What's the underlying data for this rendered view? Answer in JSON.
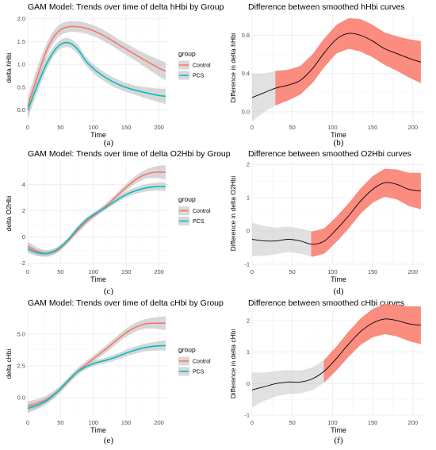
{
  "chart_data": [
    {
      "panel": "a",
      "type": "line",
      "title": "GAM Model: Trends over time of delta hHbi by Group",
      "xlabel": "Time",
      "ylabel": "delta hHbi",
      "xlim": [
        0,
        215
      ],
      "ylim": [
        -0.25,
        2.1
      ],
      "xticks": [
        0,
        50,
        100,
        150,
        200
      ],
      "yticks": [
        0.0,
        0.5,
        1.0,
        1.5,
        2.0
      ],
      "ytick_labels": [
        "0.0",
        "0.5",
        "1.0",
        "1.5",
        "2.0"
      ],
      "grid": true,
      "legend": {
        "title": "group",
        "placement": "right"
      },
      "series": [
        {
          "name": "Control",
          "color": "#F8766D",
          "x": [
            0,
            15,
            30,
            45,
            60,
            80,
            100,
            120,
            140,
            160,
            180,
            200,
            210
          ],
          "y": [
            0.08,
            0.75,
            1.35,
            1.7,
            1.82,
            1.82,
            1.74,
            1.6,
            1.42,
            1.25,
            1.08,
            0.92,
            0.85
          ],
          "band": [
            0.2,
            0.2,
            0.15,
            0.13,
            0.12,
            0.12,
            0.12,
            0.12,
            0.12,
            0.13,
            0.15,
            0.18,
            0.2
          ]
        },
        {
          "name": "PCS",
          "color": "#00BFC4",
          "x": [
            0,
            15,
            30,
            45,
            60,
            75,
            90,
            105,
            120,
            140,
            160,
            180,
            200,
            210
          ],
          "y": [
            0.0,
            0.55,
            1.05,
            1.38,
            1.48,
            1.35,
            1.05,
            0.85,
            0.7,
            0.55,
            0.45,
            0.38,
            0.32,
            0.3
          ],
          "band": [
            0.2,
            0.15,
            0.12,
            0.1,
            0.1,
            0.1,
            0.1,
            0.1,
            0.1,
            0.1,
            0.1,
            0.12,
            0.15,
            0.17
          ]
        }
      ]
    },
    {
      "panel": "b",
      "type": "line",
      "title": "Difference between smoothed hHbi curves",
      "xlabel": "Time",
      "ylabel": "Difference in delta hHbi",
      "xlim": [
        0,
        215
      ],
      "ylim": [
        -0.1,
        1.02
      ],
      "xticks": [
        0,
        50,
        100,
        150,
        200
      ],
      "yticks": [
        0.0,
        0.4,
        0.8
      ],
      "ytick_labels": [
        "0.0",
        "0.4",
        "0.8"
      ],
      "grid": true,
      "significant_from": 30,
      "significant_color": "#FA8072",
      "line_color": "#000000",
      "x": [
        0,
        15,
        30,
        45,
        60,
        75,
        90,
        105,
        120,
        135,
        150,
        165,
        180,
        195,
        210
      ],
      "y": [
        0.15,
        0.2,
        0.25,
        0.28,
        0.33,
        0.45,
        0.62,
        0.76,
        0.82,
        0.8,
        0.74,
        0.66,
        0.61,
        0.56,
        0.52
      ],
      "band": [
        0.25,
        0.2,
        0.18,
        0.16,
        0.15,
        0.15,
        0.15,
        0.15,
        0.16,
        0.17,
        0.17,
        0.17,
        0.18,
        0.2,
        0.22
      ]
    },
    {
      "panel": "c",
      "type": "line",
      "title": "GAM Model: Trends over time of delta O2Hbi by Group",
      "xlabel": "Time",
      "ylabel": "delta O2Hbi",
      "xlim": [
        0,
        215
      ],
      "ylim": [
        -2.2,
        5.8
      ],
      "xticks": [
        0,
        50,
        100,
        150,
        200
      ],
      "yticks": [
        -2,
        0,
        2,
        4
      ],
      "ytick_labels": [
        "-2",
        "0",
        "2",
        "4"
      ],
      "grid": true,
      "legend": {
        "title": "group",
        "placement": "right"
      },
      "series": [
        {
          "name": "Control",
          "color": "#F8766D",
          "x": [
            0,
            15,
            30,
            45,
            60,
            75,
            90,
            105,
            120,
            135,
            150,
            165,
            180,
            195,
            210
          ],
          "y": [
            -0.7,
            -1.1,
            -1.25,
            -1.0,
            -0.35,
            0.45,
            1.2,
            1.8,
            2.4,
            3.1,
            3.8,
            4.4,
            4.8,
            4.95,
            4.95
          ],
          "band": [
            0.35,
            0.3,
            0.25,
            0.22,
            0.2,
            0.2,
            0.2,
            0.2,
            0.2,
            0.22,
            0.25,
            0.3,
            0.35,
            0.45,
            0.55
          ]
        },
        {
          "name": "PCS",
          "color": "#00BFC4",
          "x": [
            0,
            15,
            30,
            45,
            60,
            75,
            90,
            105,
            120,
            135,
            150,
            165,
            180,
            195,
            210
          ],
          "y": [
            -0.9,
            -1.2,
            -1.25,
            -0.95,
            -0.3,
            0.6,
            1.35,
            1.85,
            2.3,
            2.8,
            3.25,
            3.55,
            3.75,
            3.85,
            3.85
          ],
          "band": [
            0.3,
            0.25,
            0.2,
            0.2,
            0.18,
            0.18,
            0.18,
            0.18,
            0.18,
            0.2,
            0.22,
            0.25,
            0.28,
            0.3,
            0.32
          ]
        }
      ]
    },
    {
      "panel": "d",
      "type": "line",
      "title": "Difference between smoothed O2Hbi curves",
      "xlabel": "Time",
      "ylabel": "Difference in delta O2Hbi",
      "xlim": [
        0,
        215
      ],
      "ylim": [
        -1.05,
        2.1
      ],
      "xticks": [
        0,
        50,
        100,
        150,
        200
      ],
      "yticks": [
        -1,
        0,
        1,
        2
      ],
      "ytick_labels": [
        "-1",
        "0",
        "1",
        "2"
      ],
      "grid": true,
      "significant_from": 75,
      "significant_color": "#FA8072",
      "line_color": "#000000",
      "x": [
        0,
        15,
        30,
        45,
        60,
        75,
        90,
        105,
        120,
        135,
        150,
        165,
        180,
        195,
        210
      ],
      "y": [
        -0.25,
        -0.3,
        -0.3,
        -0.25,
        -0.3,
        -0.4,
        -0.3,
        0.05,
        0.45,
        0.9,
        1.25,
        1.45,
        1.4,
        1.25,
        1.2
      ],
      "band": [
        0.5,
        0.45,
        0.4,
        0.38,
        0.38,
        0.38,
        0.38,
        0.38,
        0.38,
        0.38,
        0.4,
        0.42,
        0.45,
        0.5,
        0.55
      ]
    },
    {
      "panel": "e",
      "type": "line",
      "title": "GAM Model: Trends over time of delta cHbi by Group",
      "xlabel": "Time",
      "ylabel": "delta cHbi",
      "xlim": [
        0,
        215
      ],
      "ylim": [
        -1.5,
        6.8
      ],
      "xticks": [
        0,
        50,
        100,
        150,
        200
      ],
      "yticks": [
        0.0,
        2.5,
        5.0
      ],
      "ytick_labels": [
        "0.0",
        "2.5",
        "5.0"
      ],
      "grid": true,
      "legend": {
        "title": "group",
        "placement": "right"
      },
      "series": [
        {
          "name": "Control",
          "color": "#F8766D",
          "x": [
            0,
            15,
            30,
            45,
            60,
            75,
            90,
            105,
            120,
            135,
            150,
            165,
            180,
            195,
            210
          ],
          "y": [
            -0.7,
            -0.45,
            -0.1,
            0.45,
            1.2,
            2.0,
            2.65,
            3.25,
            3.85,
            4.5,
            5.1,
            5.55,
            5.8,
            5.85,
            5.85
          ],
          "band": [
            0.4,
            0.35,
            0.3,
            0.28,
            0.26,
            0.26,
            0.26,
            0.26,
            0.28,
            0.3,
            0.32,
            0.35,
            0.38,
            0.45,
            0.55
          ]
        },
        {
          "name": "PCS",
          "color": "#00BFC4",
          "x": [
            0,
            15,
            30,
            45,
            60,
            75,
            90,
            105,
            120,
            135,
            150,
            165,
            180,
            195,
            210
          ],
          "y": [
            -0.85,
            -0.6,
            -0.2,
            0.45,
            1.25,
            2.0,
            2.45,
            2.75,
            2.95,
            3.2,
            3.5,
            3.75,
            3.95,
            4.05,
            4.1
          ],
          "band": [
            0.35,
            0.3,
            0.25,
            0.22,
            0.2,
            0.2,
            0.2,
            0.2,
            0.22,
            0.24,
            0.26,
            0.28,
            0.3,
            0.35,
            0.4
          ]
        }
      ]
    },
    {
      "panel": "f",
      "type": "line",
      "title": "Difference between smoothed cHbi curves",
      "xlabel": "Time",
      "ylabel": "Difference in delta cHbi",
      "xlim": [
        0,
        215
      ],
      "ylim": [
        -1.05,
        2.3
      ],
      "xticks": [
        0,
        50,
        100,
        150,
        200
      ],
      "yticks": [
        -1,
        0,
        1,
        2
      ],
      "ytick_labels": [
        "-1",
        "0",
        "1",
        "2"
      ],
      "grid": true,
      "significant_from": 90,
      "significant_color": "#FA8072",
      "line_color": "#000000",
      "x": [
        0,
        15,
        30,
        45,
        60,
        75,
        90,
        105,
        120,
        135,
        150,
        165,
        180,
        195,
        210
      ],
      "y": [
        -0.2,
        -0.1,
        0.0,
        0.05,
        0.05,
        0.15,
        0.4,
        0.8,
        1.25,
        1.65,
        1.92,
        2.05,
        2.0,
        1.9,
        1.85
      ],
      "band": [
        0.55,
        0.45,
        0.4,
        0.38,
        0.36,
        0.36,
        0.36,
        0.38,
        0.4,
        0.42,
        0.45,
        0.48,
        0.5,
        0.55,
        0.6
      ]
    }
  ],
  "captions": [
    "(a)",
    "(b)",
    "(c)",
    "(d)",
    "(e)",
    "(f)"
  ]
}
